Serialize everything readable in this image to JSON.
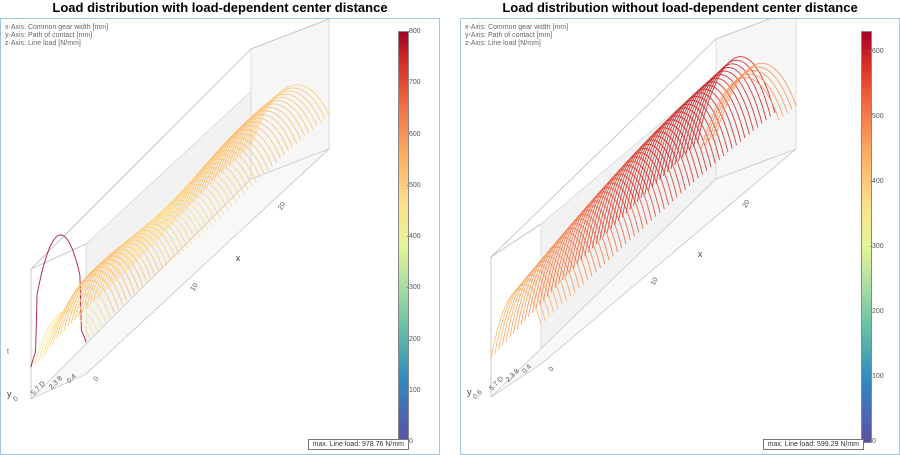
{
  "chart_data": [
    {
      "type": "surface-3d",
      "title": "Load distribution with load-dependent center distance",
      "axis_info": [
        "x-Axis: Common gear width [mm]",
        "y-Axis: Path of contact [mm]",
        "z-Axis: Line load [N/mm]"
      ],
      "x_axis": {
        "name": "x",
        "ticks": [
          "0",
          "10",
          "20"
        ]
      },
      "y_axis": {
        "name": "y",
        "ticks": [
          "0.4",
          "2.3 8",
          "5.7 D",
          "0"
        ]
      },
      "z_axis": {
        "ticks": [
          "t"
        ]
      },
      "colorbar": {
        "ticks": [
          "800",
          "700",
          "600",
          "500",
          "400",
          "300",
          "200",
          "100",
          "0"
        ],
        "min": 0,
        "max": 800
      },
      "max_label": "max. Line load: 978.76 N/mm",
      "max_line_load": 978.76,
      "plateau_load": 530
    },
    {
      "type": "surface-3d",
      "title": "Load distribution without load-dependent center distance",
      "axis_info": [
        "x-Axis: Common gear width [mm]",
        "y-Axis: Path of contact [mm]",
        "z-Axis: Line load [N/mm]"
      ],
      "x_axis": {
        "name": "x",
        "ticks": [
          "0",
          "10",
          "20"
        ]
      },
      "y_axis": {
        "name": "y",
        "ticks": [
          "0.4",
          "2.3 8",
          "5.7 D",
          "0.6"
        ]
      },
      "z_axis": {
        "ticks": []
      },
      "colorbar": {
        "ticks": [
          "600",
          "500",
          "400",
          "300",
          "200",
          "100",
          "0"
        ],
        "min": 0,
        "max": 630
      },
      "max_label": "max. Line load: 599.29 N/mm",
      "max_line_load": 599.29,
      "plateau_load": 590
    }
  ]
}
